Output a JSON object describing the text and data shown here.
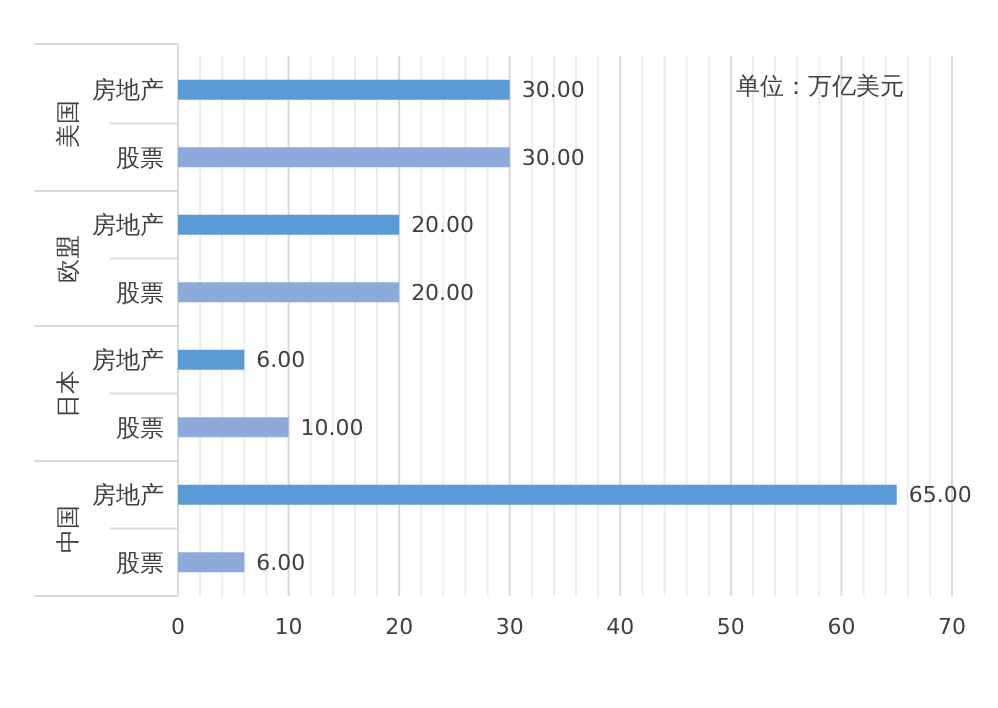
{
  "chart_data": {
    "type": "bar",
    "orientation": "horizontal",
    "categories": [
      "房地产",
      "股票",
      "房地产",
      "股票",
      "房地产",
      "股票",
      "房地产",
      "股票"
    ],
    "values": [
      30,
      30,
      20,
      20,
      6,
      10,
      65,
      6
    ],
    "value_labels": [
      "30.00",
      "30.00",
      "20.00",
      "20.00",
      "6.00",
      "10.00",
      "65.00",
      "6.00"
    ],
    "colors": [
      "#5b9bd5",
      "#8eaadb",
      "#5b9bd5",
      "#8eaadb",
      "#5b9bd5",
      "#8eaadb",
      "#5b9bd5",
      "#8eaadb"
    ],
    "xlim": [
      0,
      70
    ],
    "xticks": [
      0,
      {
        "value": 2,
        "label": null
      },
      {
        "value": 4,
        "label": null
      },
      {
        "value": 6,
        "label": null
      },
      {
        "value": 8,
        "label": null
      },
      10,
      {
        "value": 12,
        "label": null
      },
      {
        "value": 14,
        "label": null
      },
      {
        "value": 16,
        "label": null
      },
      {
        "value": 18,
        "label": null
      },
      20,
      {
        "value": 22,
        "label": null
      },
      {
        "value": 24,
        "label": null
      },
      {
        "value": 26,
        "label": null
      },
      {
        "value": 28,
        "label": null
      },
      30,
      {
        "value": 32,
        "label": null
      },
      {
        "value": 34,
        "label": null
      },
      {
        "value": 36,
        "label": null
      },
      {
        "value": 38,
        "label": null
      },
      40,
      {
        "value": 42,
        "label": null
      },
      {
        "value": 44,
        "label": null
      },
      {
        "value": 46,
        "label": null
      },
      {
        "value": 48,
        "label": null
      },
      50,
      {
        "value": 52,
        "label": null
      },
      {
        "value": 54,
        "label": null
      },
      {
        "value": 56,
        "label": null
      },
      {
        "value": 58,
        "label": null
      },
      60,
      {
        "value": 62,
        "label": null
      },
      {
        "value": 64,
        "label": null
      },
      {
        "value": 66,
        "label": null
      },
      {
        "value": 68,
        "label": null
      },
      70
    ],
    "grid": "x",
    "annotations": [
      "美国",
      "欧盟",
      "日本",
      "中国",
      "单位：万亿美元"
    ]
  }
}
